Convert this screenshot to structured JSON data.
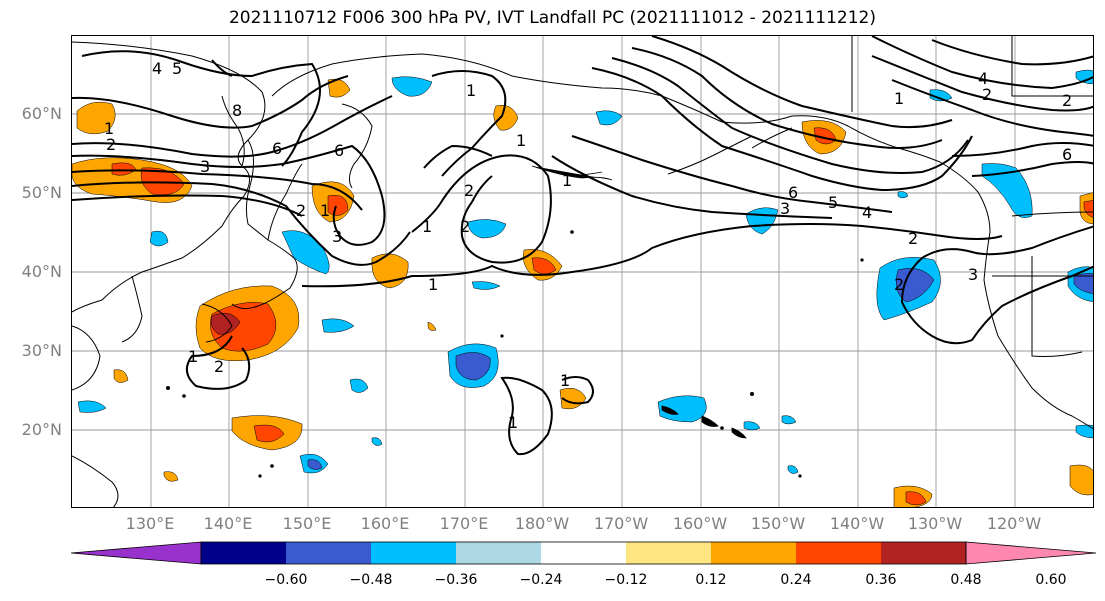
{
  "title": "2021110712 F006 300 hPa PV, IVT Landfall PC (2021111012 - 2021111212)",
  "lat_labels": [
    "60°N",
    "50°N",
    "40°N",
    "30°N",
    "20°N"
  ],
  "lon_labels": [
    "130°E",
    "140°E",
    "150°E",
    "160°E",
    "170°E",
    "180°W",
    "170°W",
    "160°W",
    "150°W",
    "140°W",
    "130°W",
    "120°W"
  ],
  "colorbar": {
    "colors": [
      "#9932cc",
      "#00008b",
      "#3a5bd0",
      "#00bfff",
      "#add8e6",
      "#ffffff",
      "#ffe680",
      "#ffa500",
      "#ff4500",
      "#b22222",
      "#ff88b0"
    ],
    "tick_labels": [
      "−0.60",
      "−0.48",
      "−0.36",
      "−0.24",
      "−0.12",
      "0.12",
      "0.24",
      "0.36",
      "0.48",
      "0.60"
    ]
  },
  "contour_labels": [
    "1",
    "2",
    "3",
    "4",
    "5",
    "6",
    "8",
    "1",
    "2",
    "6",
    "1",
    "2",
    "3",
    "1",
    "2",
    "1",
    "4",
    "2",
    "3",
    "6",
    "2",
    "4",
    "5",
    "6",
    "1",
    "2",
    "3",
    "1",
    "1",
    "1",
    "2",
    "1",
    "1",
    "2"
  ]
}
